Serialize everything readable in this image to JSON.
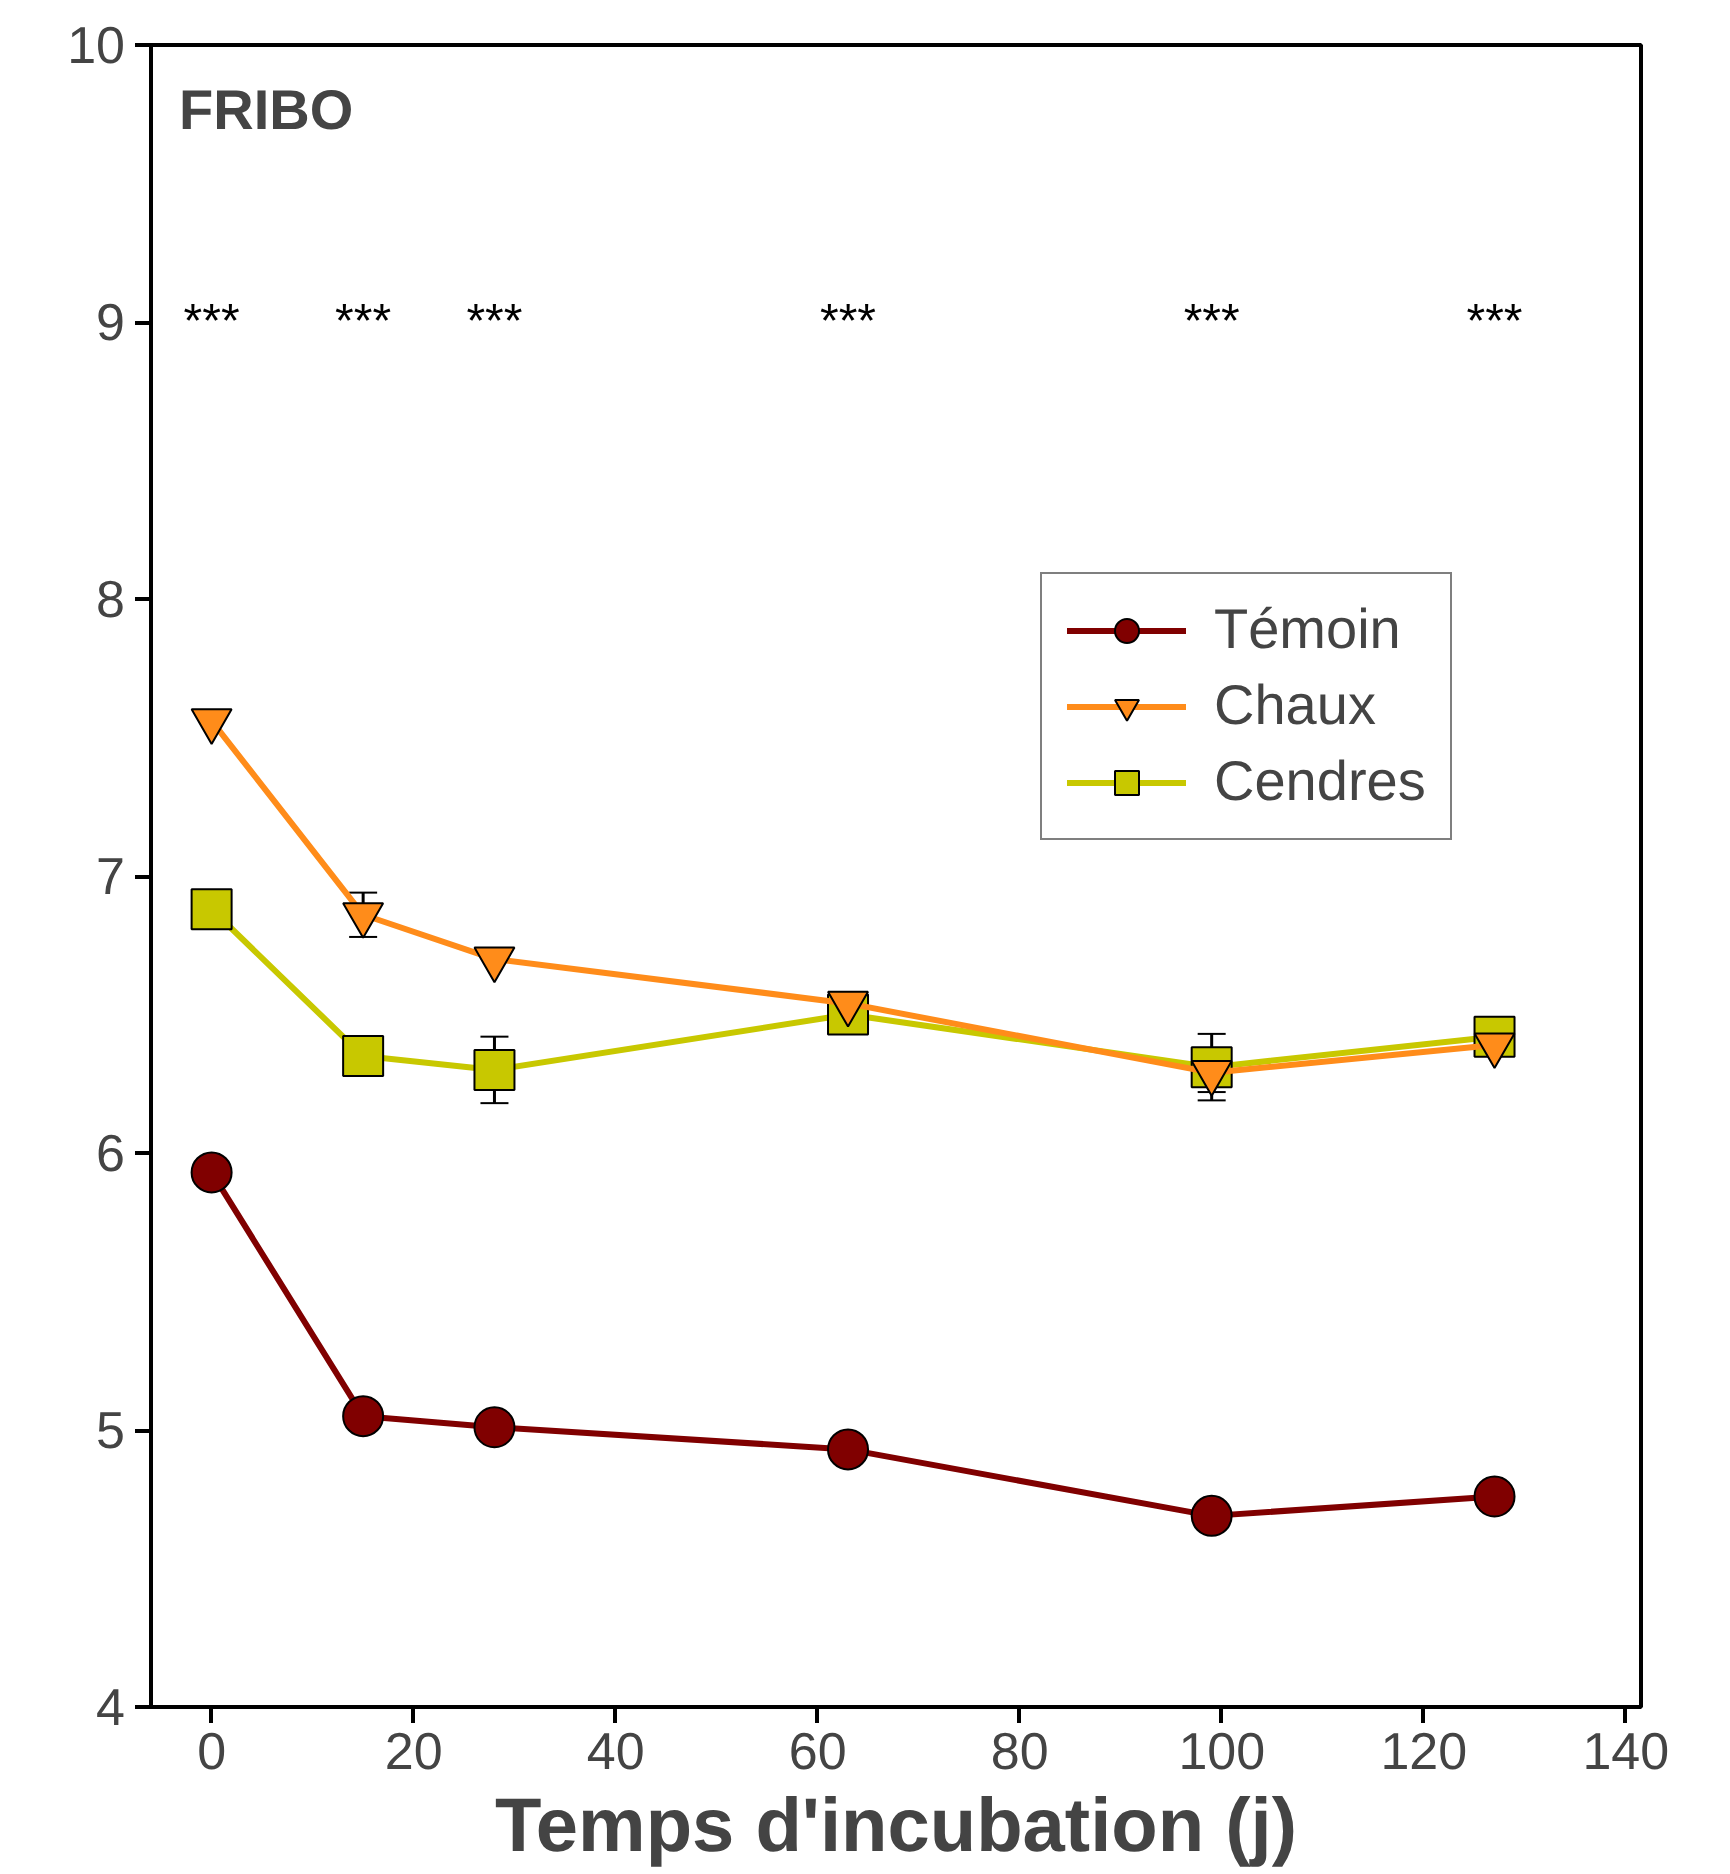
{
  "chart_data": {
    "type": "line",
    "xlabel": "Temps d'incubation (j)",
    "x": [
      0,
      15,
      28,
      63,
      99,
      127
    ],
    "series": [
      {
        "name": "Témoin",
        "color": "#800000",
        "marker": "circle",
        "values": [
          5.93,
          5.05,
          5.01,
          4.93,
          4.69,
          4.76
        ]
      },
      {
        "name": "Chaux",
        "color": "#ff8c1a",
        "marker": "triangle",
        "values": [
          7.56,
          6.86,
          6.7,
          6.54,
          6.29,
          6.39
        ],
        "errors": [
          null,
          0.08,
          null,
          null,
          0.07,
          null
        ]
      },
      {
        "name": "Cendres",
        "color": "#c8c800",
        "marker": "square",
        "values": [
          6.88,
          6.35,
          6.3,
          6.5,
          6.31,
          6.42
        ],
        "errors": [
          null,
          null,
          0.12,
          null,
          0.12,
          null
        ]
      }
    ],
    "xlim": [
      -6,
      141.5
    ],
    "ylim": [
      4,
      10
    ],
    "xticks": [
      0,
      20,
      40,
      60,
      80,
      100,
      120,
      140
    ],
    "yticks": [
      4,
      5,
      6,
      7,
      8,
      9,
      10
    ],
    "legend": "top right",
    "grid": false,
    "annotations": [
      "FRIBO",
      "***",
      "***",
      "***",
      "***",
      "***",
      "***"
    ]
  }
}
